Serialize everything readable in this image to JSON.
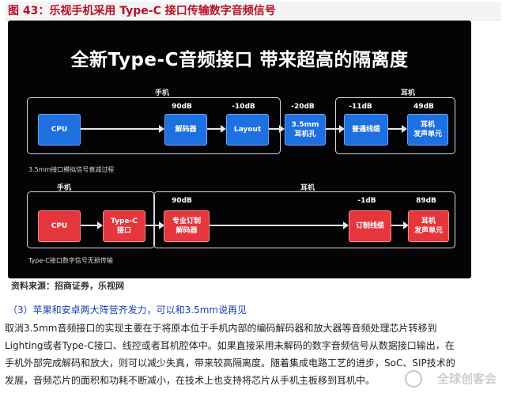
{
  "figure_title": "图 43：乐视手机采用 Type-C 接口传输数字音频信号",
  "slide": {
    "headline": "全新Type-C音频接口 带来超高的隔离度",
    "top": {
      "label_phone": "手机",
      "label_earphone": "耳机",
      "note": "3.5mm接口模拟信号衰减过程",
      "db": [
        "90dB",
        "-10dB",
        "-20dB",
        "-11dB",
        "49dB"
      ],
      "blocks": [
        "CPU",
        "解码器",
        "Layout",
        "3.5mm\n耳机孔",
        "普通线缆",
        "耳机\n发声单元"
      ]
    },
    "bottom": {
      "label_phone": "手机",
      "label_earphone": "耳机",
      "note": "Type-C接口数字信号无损传输",
      "db": [
        "90dB",
        "-1dB",
        "89dB"
      ],
      "blocks": [
        "CPU",
        "Type-C\n接口",
        "专业订制\n解码器",
        "订制线缆",
        "耳机\n发声单元"
      ]
    }
  },
  "source": "资料来源：招商证券，乐视网",
  "paragraph_heading": "（3）苹果和安卓两大阵营齐发力，可以和3.5mm说再见",
  "paragraph_lines": [
    "取消3.5mm音频接口的实现主要在于将原本位于手机内部的编码解码器和放大器等音频处理芯片转移到",
    "Lighting或者Type-C接口、线控或者耳机腔体中。如果直接采用未解码的数字音频信号从数据接口输出，在",
    "手机外部完成解码和放大，则可以减少失真，带来较高隔离度。随着集成电路工艺的进步，SoC、SIP技术的",
    "发展，音频芯片的面积和功耗不断减小，在技术上也支持将芯片从手机主板移到耳机中。"
  ],
  "watermark": "全球创客会",
  "colors": {
    "title_red": "#b5122a",
    "block_blue": "#1e6fe0",
    "block_red": "#e4363c",
    "heading_blue": "#1a3cb0"
  }
}
